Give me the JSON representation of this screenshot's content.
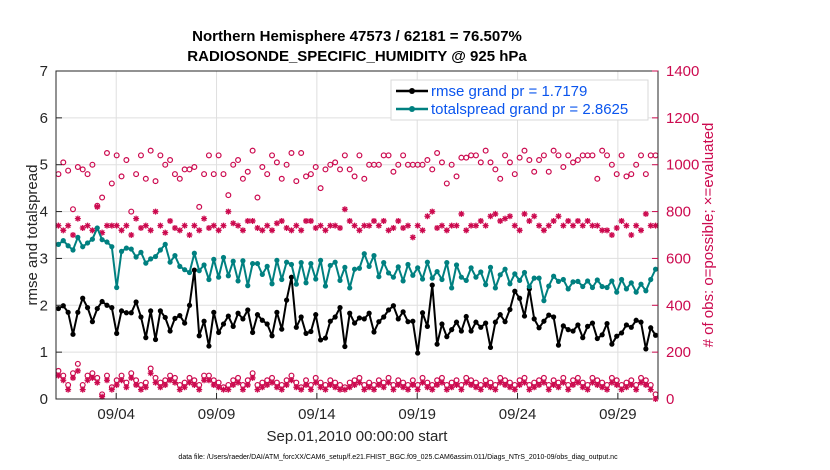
{
  "chart_data": {
    "type": "line",
    "title_line1": "Northern Hemisphere 47573 / 62181 = 76.507%",
    "title_line2": "RADIOSONDE_SPECIFIC_HUMIDITY @ 925 hPa",
    "xlabel": "Sep.01,2010 00:00:00 start",
    "ylabel": "rmse and totalspread",
    "ylabel_right": "# of obs: o=possible; ×=evaluated",
    "footer": "data file: /Users/raeder/DAI/ATM_forcXX/CAM6_setup/f.e21.FHIST_BGC.f09_025.CAM6assim.011/Diags_NTrS_2010-09/obs_diag_output.nc",
    "xlim": [
      0.0,
      30.0
    ],
    "ylim": [
      0,
      7
    ],
    "ylim_right": [
      0,
      1400
    ],
    "x_ticks": [
      3,
      8,
      13,
      18,
      23,
      28
    ],
    "x_tick_labels": [
      "09/04",
      "09/09",
      "09/14",
      "09/19",
      "09/24",
      "09/29"
    ],
    "y_ticks": [
      0,
      1,
      2,
      3,
      4,
      5,
      6,
      7
    ],
    "y_ticks_right": [
      0,
      200,
      400,
      600,
      800,
      1000,
      1200,
      1400
    ],
    "grid": true,
    "legend_position": "top-right",
    "colors": {
      "rmse": "#000000",
      "totalspread": "#008080",
      "obs": "#cc0a4f",
      "legend_text": "#0a55ee"
    },
    "series": [
      {
        "name": "rmse grand pr = 1.7179",
        "values": [
          1.93,
          1.99,
          1.85,
          1.38,
          1.85,
          2.15,
          1.95,
          1.65,
          1.93,
          2.08,
          2.0,
          1.95,
          1.4,
          1.88,
          1.84,
          1.84,
          2.07,
          1.75,
          1.31,
          1.88,
          1.27,
          1.88,
          1.74,
          1.45,
          1.72,
          1.78,
          1.62,
          2.0,
          2.75,
          1.35,
          1.66,
          1.13,
          1.85,
          1.42,
          1.6,
          1.77,
          1.55,
          1.83,
          1.71,
          1.9,
          1.42,
          1.8,
          1.68,
          1.6,
          1.35,
          1.85,
          1.49,
          2.11,
          2.6,
          1.53,
          1.75,
          1.4,
          1.44,
          1.8,
          1.26,
          1.3,
          1.66,
          1.75,
          1.95,
          1.12,
          1.83,
          1.62,
          1.73,
          1.71,
          1.83,
          1.43,
          1.65,
          1.75,
          1.9,
          1.99,
          1.71,
          1.86,
          1.65,
          1.66,
          0.98,
          1.84,
          1.55,
          2.43,
          1.17,
          1.6,
          1.33,
          1.48,
          1.64,
          1.45,
          1.76,
          1.45,
          1.64,
          1.53,
          1.62,
          1.1,
          1.64,
          1.8,
          1.65,
          1.91,
          2.3,
          2.15,
          1.77,
          2.35,
          1.71,
          1.52,
          1.66,
          1.79,
          1.75,
          1.15,
          1.56,
          1.48,
          1.45,
          1.58,
          1.31,
          1.55,
          1.62,
          1.29,
          1.37,
          1.61,
          1.17,
          1.34,
          1.41,
          1.58,
          1.53,
          1.68,
          1.64,
          1.07,
          1.52,
          1.36
        ]
      },
      {
        "name": "totalspread grand pr = 2.8625",
        "values": [
          3.3,
          3.38,
          3.27,
          3.18,
          3.45,
          3.25,
          3.33,
          3.41,
          3.65,
          3.4,
          3.35,
          3.25,
          2.38,
          3.15,
          3.22,
          3.2,
          3.03,
          3.13,
          2.9,
          2.99,
          3.04,
          3.18,
          3.3,
          2.92,
          3.06,
          2.83,
          2.76,
          2.7,
          3.11,
          2.74,
          2.86,
          2.55,
          2.98,
          2.6,
          3.02,
          2.63,
          2.94,
          2.52,
          2.95,
          2.42,
          2.89,
          2.89,
          2.66,
          2.83,
          2.46,
          2.96,
          2.55,
          2.92,
          2.87,
          2.45,
          2.91,
          2.48,
          2.89,
          2.56,
          2.96,
          2.41,
          2.85,
          2.92,
          2.53,
          2.81,
          2.37,
          2.77,
          2.79,
          3.1,
          2.83,
          3.06,
          2.61,
          2.91,
          2.69,
          2.6,
          2.82,
          2.52,
          2.87,
          2.64,
          2.8,
          2.56,
          2.92,
          2.58,
          2.72,
          2.55,
          2.91,
          2.37,
          2.86,
          2.6,
          2.53,
          2.8,
          2.6,
          2.71,
          2.44,
          2.81,
          2.37,
          2.65,
          2.77,
          2.46,
          2.67,
          2.53,
          2.7,
          2.4,
          2.58,
          2.58,
          2.1,
          2.41,
          2.62,
          2.51,
          2.55,
          2.35,
          2.5,
          2.51,
          2.4,
          2.52,
          2.38,
          2.54,
          2.4,
          2.38,
          2.52,
          2.28,
          2.55,
          2.35,
          2.48,
          2.28,
          2.45,
          2.31,
          2.55,
          2.77
        ]
      }
    ],
    "obs_possible": [
      960,
      1010,
      975,
      810,
      990,
      980,
      960,
      1000,
      825,
      860,
      1050,
      920,
      1040,
      950,
      1020,
      800,
      960,
      1040,
      940,
      1060,
      930,
      1040,
      1000,
      1020,
      960,
      940,
      980,
      980,
      990,
      820,
      960,
      1040,
      960,
      1040,
      960,
      870,
      1000,
      1020,
      940,
      970,
      1060,
      860,
      990,
      960,
      1040,
      1010,
      940,
      1000,
      1050,
      930,
      1050,
      950,
      960,
      990,
      900,
      980,
      1000,
      1010,
      980,
      1040,
      980,
      950,
      1040,
      940,
      1000,
      1000,
      1000,
      1040,
      1040,
      970,
      1000,
      1040,
      1000,
      1000,
      1000,
      1000,
      1020,
      980,
      1050,
      1010,
      920,
      1000,
      950,
      1030,
      1030,
      1040,
      1040,
      1010,
      1060,
      1010,
      980,
      940,
      1040,
      1010,
      960,
      1030,
      1060,
      1020,
      970,
      1020,
      1040,
      970,
      1060,
      1040,
      990,
      1040,
      1010,
      1020,
      1040,
      1040,
      1040,
      940,
      1060,
      1040,
      1000,
      960,
      1040,
      950,
      960,
      1000,
      1040,
      960,
      1040,
      1040
    ],
    "obs_evaluated": [
      740,
      720,
      740,
      700,
      770,
      730,
      740,
      720,
      820,
      710,
      740,
      740,
      740,
      720,
      740,
      700,
      770,
      730,
      740,
      720,
      800,
      740,
      710,
      760,
      730,
      720,
      740,
      700,
      740,
      720,
      770,
      730,
      740,
      720,
      740,
      800,
      750,
      740,
      720,
      760,
      760,
      730,
      720,
      740,
      720,
      750,
      760,
      730,
      720,
      740,
      720,
      760,
      760,
      730,
      740,
      720,
      740,
      740,
      730,
      810,
      760,
      740,
      720,
      740,
      740,
      760,
      740,
      760,
      720,
      730,
      760,
      730,
      740,
      690,
      740,
      720,
      780,
      800,
      730,
      740,
      720,
      740,
      740,
      790,
      720,
      740,
      740,
      760,
      740,
      780,
      790,
      760,
      770,
      780,
      740,
      720,
      790,
      760,
      780,
      740,
      720,
      740,
      760,
      780,
      740,
      760,
      740,
      760,
      740,
      760,
      740,
      740,
      720,
      720,
      700,
      730,
      760,
      740,
      700,
      740,
      720,
      790,
      740,
      740
    ],
    "obs_possible_low": [
      120,
      100,
      60,
      110,
      150,
      60,
      100,
      110,
      90,
      20,
      100,
      50,
      80,
      100,
      70,
      110,
      80,
      60,
      70,
      130,
      90,
      70,
      80,
      100,
      90,
      60,
      70,
      90,
      80,
      60,
      100,
      100,
      80,
      70,
      50,
      60,
      80,
      90,
      60,
      80,
      110,
      60,
      70,
      80,
      90,
      70,
      60,
      80,
      100,
      70,
      50,
      80,
      60,
      90,
      70,
      60,
      80,
      70,
      60,
      50,
      70,
      80,
      90,
      60,
      70,
      60,
      80,
      70,
      90,
      60,
      80,
      70,
      60,
      80,
      60,
      90,
      70,
      60,
      80,
      90,
      60,
      70,
      80,
      60,
      90,
      80,
      70,
      60,
      80,
      70,
      60,
      90,
      80,
      70,
      60,
      80,
      90,
      60,
      70,
      80,
      90,
      60,
      80,
      70,
      90,
      60,
      80,
      90,
      70,
      60,
      90,
      80,
      70,
      60,
      90,
      80,
      60,
      70,
      80,
      60,
      90,
      80,
      60,
      20
    ],
    "obs_evaluated_low": [
      100,
      80,
      40,
      90,
      120,
      40,
      80,
      90,
      70,
      10,
      80,
      40,
      60,
      80,
      50,
      90,
      60,
      40,
      50,
      110,
      70,
      50,
      60,
      80,
      70,
      40,
      50,
      70,
      60,
      40,
      80,
      80,
      60,
      50,
      40,
      40,
      60,
      70,
      40,
      60,
      90,
      40,
      50,
      60,
      70,
      50,
      40,
      60,
      80,
      50,
      40,
      60,
      40,
      70,
      50,
      40,
      60,
      50,
      40,
      40,
      50,
      60,
      70,
      40,
      50,
      40,
      60,
      50,
      70,
      40,
      60,
      50,
      40,
      60,
      40,
      70,
      50,
      40,
      60,
      70,
      40,
      50,
      60,
      40,
      70,
      60,
      50,
      40,
      60,
      50,
      40,
      70,
      60,
      50,
      40,
      60,
      70,
      40,
      50,
      60,
      70,
      40,
      60,
      50,
      70,
      40,
      60,
      70,
      50,
      40,
      70,
      60,
      50,
      40,
      70,
      60,
      40,
      50,
      60,
      40,
      70,
      60,
      40,
      0
    ]
  }
}
